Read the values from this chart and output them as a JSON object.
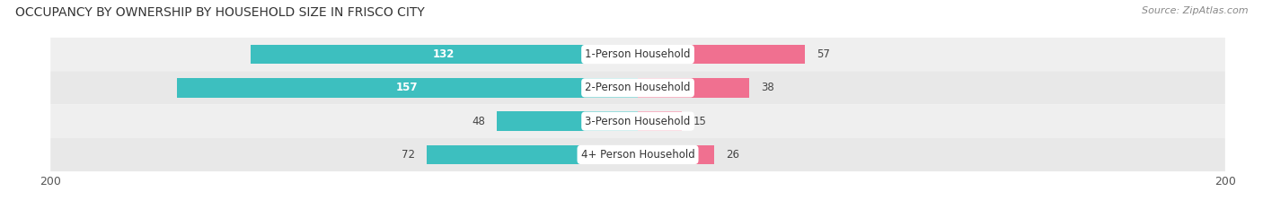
{
  "title": "OCCUPANCY BY OWNERSHIP BY HOUSEHOLD SIZE IN FRISCO CITY",
  "source": "Source: ZipAtlas.com",
  "categories": [
    "1-Person Household",
    "2-Person Household",
    "3-Person Household",
    "4+ Person Household"
  ],
  "owner_values": [
    132,
    157,
    48,
    72
  ],
  "renter_values": [
    57,
    38,
    15,
    26
  ],
  "owner_color": "#3DBFBF",
  "renter_color": "#F07090",
  "row_bg_colors": [
    "#EFEFEF",
    "#E8E8E8",
    "#EFEFEF",
    "#E8E8E8"
  ],
  "axis_max": 200,
  "title_fontsize": 10,
  "source_fontsize": 8,
  "label_fontsize": 8.5,
  "value_fontsize": 8.5,
  "tick_fontsize": 9,
  "legend_fontsize": 9,
  "bar_height": 0.58
}
